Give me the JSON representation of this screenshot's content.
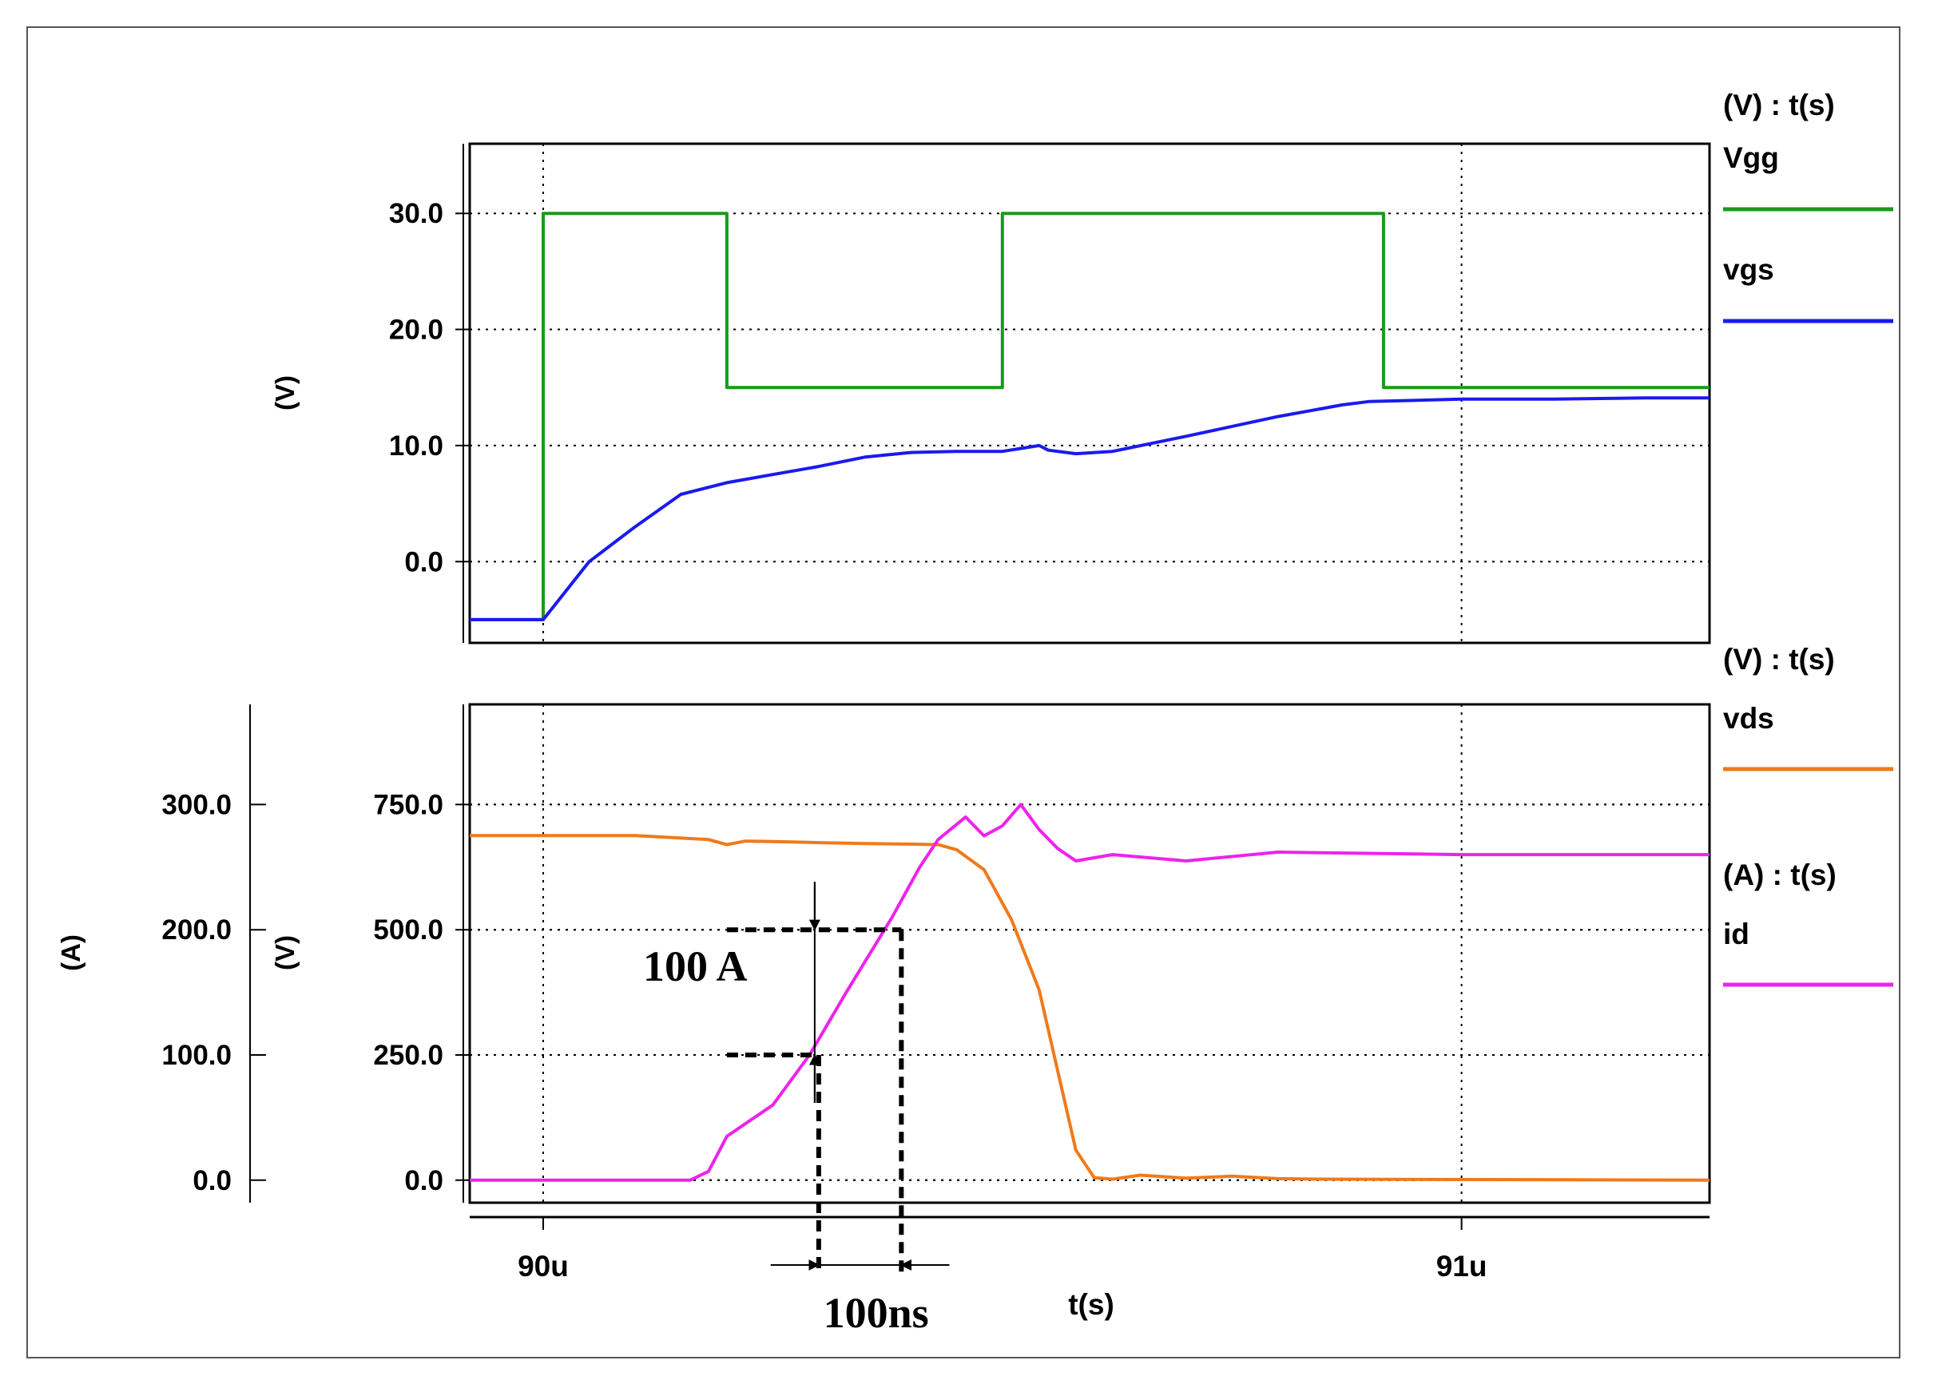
{
  "chart_data": [
    {
      "type": "line",
      "id": "top",
      "xlim": [
        89.92,
        91.27
      ],
      "xunit": "us",
      "ylim": [
        -7,
        36
      ],
      "yticks": [
        0,
        10,
        20,
        30
      ],
      "ytick_labels": [
        "0.0",
        "10.0",
        "20.0",
        "30.0"
      ],
      "ylabel": "(V)",
      "legend_header": "(V) : t(s)",
      "grid": "dotted",
      "legend": "right",
      "series": [
        {
          "name": "Vgg",
          "color": "#1a9a1a",
          "step": true,
          "x": [
            89.92,
            90.0,
            90.0,
            90.2,
            90.2,
            90.5,
            90.5,
            90.915,
            90.915,
            91.27
          ],
          "y": [
            -5,
            -5,
            30,
            30,
            15,
            15,
            30,
            30,
            15,
            15
          ]
        },
        {
          "name": "vgs",
          "color": "#1a1aee",
          "x": [
            89.92,
            90.0,
            90.02,
            90.05,
            90.1,
            90.15,
            90.2,
            90.25,
            90.3,
            90.35,
            90.4,
            90.45,
            90.5,
            90.54,
            90.55,
            90.58,
            90.62,
            90.7,
            90.8,
            90.87,
            90.9,
            91.0,
            91.1,
            91.2,
            91.27
          ],
          "y": [
            -5,
            -5,
            -3,
            0,
            3,
            5.8,
            6.8,
            7.5,
            8.2,
            9,
            9.4,
            9.5,
            9.5,
            10,
            9.6,
            9.3,
            9.5,
            10.8,
            12.5,
            13.5,
            13.8,
            14,
            14,
            14.1,
            14.1
          ]
        }
      ]
    },
    {
      "type": "line",
      "id": "bottom",
      "xlim": [
        89.92,
        91.27
      ],
      "xunit": "us",
      "ylim": [
        -45,
        950
      ],
      "yticks": [
        0,
        250,
        500,
        750
      ],
      "ytick_labels": [
        "0.0",
        "250.0",
        "500.0",
        "750.0"
      ],
      "ylabel": "(V)",
      "secondary_ylim": [
        -18,
        380
      ],
      "secondary_yticks": [
        0,
        100,
        200,
        300
      ],
      "secondary_ytick_labels": [
        "0.0",
        "100.0",
        "200.0",
        "300.0"
      ],
      "secondary_ylabel": "(A)",
      "xticks": [
        90,
        91
      ],
      "xtick_labels": [
        "90u",
        "91u"
      ],
      "xlabel": "t(s)",
      "grid": "dotted",
      "legend": "right",
      "series": [
        {
          "name": "vds",
          "header": "(V) : t(s)",
          "color": "#f07a1a",
          "axis": "left",
          "x": [
            89.92,
            90.1,
            90.18,
            90.2,
            90.22,
            90.25,
            90.3,
            90.35,
            90.4,
            90.43,
            90.45,
            90.48,
            90.51,
            90.54,
            90.56,
            90.58,
            90.6,
            90.62,
            90.65,
            90.7,
            90.75,
            90.8,
            90.85,
            91.27
          ],
          "y": [
            688,
            688,
            680,
            670,
            677,
            676,
            674,
            672,
            671,
            670,
            660,
            620,
            520,
            380,
            220,
            60,
            5,
            2,
            10,
            4,
            8,
            3,
            2,
            0
          ]
        },
        {
          "name": "id",
          "header": "(A) : t(s)",
          "color": "#ee22ee",
          "axis": "right",
          "x": [
            89.92,
            90.16,
            90.18,
            90.2,
            90.22,
            90.25,
            90.29,
            90.33,
            90.38,
            90.41,
            90.43,
            90.46,
            90.48,
            90.5,
            90.52,
            90.54,
            90.56,
            90.58,
            90.62,
            90.7,
            90.8,
            91.0,
            91.27
          ],
          "y": [
            0,
            0,
            7,
            35,
            45,
            60,
            100,
            150,
            210,
            250,
            272,
            290,
            275,
            283,
            300,
            280,
            265,
            255,
            260,
            255,
            262,
            260,
            260
          ]
        }
      ],
      "annotations": [
        {
          "label": "100 A",
          "kind": "vertical",
          "x_from": 90.3,
          "y_from": 100,
          "y_to": 200,
          "guide_x": [
            90.2,
            90.39
          ]
        },
        {
          "label": "100ns",
          "kind": "horizontal",
          "x_from": 90.3,
          "x_to": 90.39,
          "y": 100
        }
      ]
    }
  ]
}
